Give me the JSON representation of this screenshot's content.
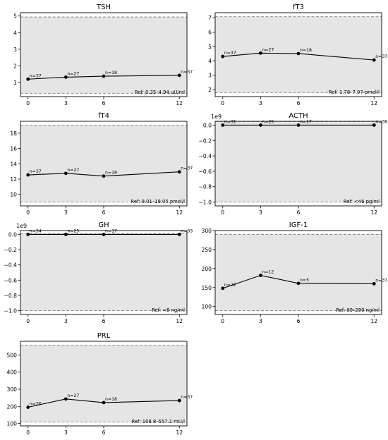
{
  "chart_data": [
    {
      "type": "line",
      "title": "TSH",
      "x": [
        0,
        3,
        6,
        12
      ],
      "xticks": [
        "0",
        "3",
        "6",
        "12"
      ],
      "series": [
        {
          "values": [
            1.2,
            1.32,
            1.38,
            1.43
          ]
        }
      ],
      "point_labels": [
        "n=37",
        "n=27",
        "n=18",
        "n=37"
      ],
      "ref_range": [
        0.35,
        4.94
      ],
      "ref_label": "Ref: 0.35–4.94 uU/ml",
      "ylim": [
        0.15,
        5.2
      ],
      "yticks": [
        1,
        2,
        3,
        4,
        5
      ],
      "yticklabels": [
        "1",
        "2",
        "3",
        "4",
        "5"
      ],
      "offset_text": "",
      "shading": "#e5e5e5"
    },
    {
      "type": "line",
      "title": "fT3",
      "x": [
        0,
        3,
        6,
        12
      ],
      "xticks": [
        "0",
        "3",
        "6",
        "12"
      ],
      "series": [
        {
          "values": [
            4.3,
            4.53,
            4.5,
            4.05
          ]
        }
      ],
      "point_labels": [
        "n=37",
        "n=27",
        "n=18",
        "n=37"
      ],
      "ref_range": [
        1.78,
        7.07
      ],
      "ref_label": "Ref: 1.78–7.07 pmol/l",
      "ylim": [
        1.5,
        7.35
      ],
      "yticks": [
        2,
        3,
        4,
        5,
        6,
        7
      ],
      "yticklabels": [
        "2",
        "3",
        "4",
        "5",
        "6",
        "7"
      ],
      "offset_text": "",
      "shading": "#e5e5e5"
    },
    {
      "type": "line",
      "title": "fT4",
      "x": [
        0,
        3,
        6,
        12
      ],
      "xticks": [
        "0",
        "3",
        "6",
        "12"
      ],
      "series": [
        {
          "values": [
            12.55,
            12.75,
            12.4,
            12.95
          ]
        }
      ],
      "point_labels": [
        "n=37",
        "n=27",
        "n=18",
        "n=37"
      ],
      "ref_range": [
        9.01,
        19.05
      ],
      "ref_label": "Ref: 9.01–19.05 pmol/l",
      "ylim": [
        8.5,
        19.55
      ],
      "yticks": [
        10,
        12,
        14,
        16,
        18
      ],
      "yticklabels": [
        "10",
        "12",
        "14",
        "16",
        "18"
      ],
      "offset_text": "",
      "shading": "#e5e5e5"
    },
    {
      "type": "line",
      "title": "ACTH",
      "x": [
        0,
        3,
        6,
        12
      ],
      "xticks": [
        "0",
        "3",
        "6",
        "12"
      ],
      "series": [
        {
          "values": [
            0,
            0,
            0,
            0
          ]
        }
      ],
      "point_labels": [
        "n=31",
        "n=25",
        "n=17",
        "n=36"
      ],
      "ref_range": [
        -1.0,
        0.046
      ],
      "ref_label": "Ref: <46 pg/ml",
      "ylim": [
        -1.05,
        0.05
      ],
      "yticks": [
        0.0,
        -0.2,
        -0.4,
        -0.6,
        -0.8,
        -1.0
      ],
      "yticklabels": [
        "0.0",
        "−0.2",
        "−0.4",
        "−0.6",
        "−0.8",
        "−1.0"
      ],
      "offset_text": "1e9",
      "shading": "#e5e5e5"
    },
    {
      "type": "line",
      "title": "GH",
      "x": [
        0,
        3,
        6,
        12
      ],
      "xticks": [
        "0",
        "3",
        "6",
        "12"
      ],
      "series": [
        {
          "values": [
            0,
            0,
            0,
            0
          ]
        }
      ],
      "point_labels": [
        "n=34",
        "n=25",
        "n=17",
        "n=33"
      ],
      "ref_range": [
        -1.0,
        0.008
      ],
      "ref_label": "Ref: <8 ng/ml",
      "ylim": [
        -1.05,
        0.05
      ],
      "yticks": [
        0.0,
        -0.2,
        -0.4,
        -0.6,
        -0.8,
        -1.0
      ],
      "yticklabels": [
        "0.0",
        "−0.2",
        "−0.4",
        "−0.6",
        "−0.8",
        "−1.0"
      ],
      "offset_text": "1e9",
      "shading": "#e5e5e5"
    },
    {
      "type": "line",
      "title": "IGF-1",
      "x": [
        0,
        3,
        6,
        12
      ],
      "xticks": [
        "0",
        "3",
        "6",
        "12"
      ],
      "series": [
        {
          "values": [
            148,
            182,
            161,
            160
          ]
        }
      ],
      "point_labels": [
        "n=22",
        "n=12",
        "n=5",
        "n=37"
      ],
      "ref_range": [
        89,
        290
      ],
      "ref_label": "Ref: 89–290 ng/ml",
      "ylim": [
        79,
        300
      ],
      "yticks": [
        100,
        150,
        200,
        250,
        300
      ],
      "yticklabels": [
        "100",
        "150",
        "200",
        "250",
        "300"
      ],
      "offset_text": "",
      "shading": "#e5e5e5"
    },
    {
      "type": "line",
      "title": "PRL",
      "x": [
        0,
        3,
        6,
        12
      ],
      "xticks": [
        "0",
        "3",
        "6",
        "12"
      ],
      "series": [
        {
          "values": [
            195,
            243,
            222,
            234
          ]
        }
      ],
      "point_labels": [
        "n=36",
        "n=27",
        "n=18",
        "n=37"
      ],
      "ref_range": [
        108.8,
        557.1
      ],
      "ref_label": "Ref: 108.8–557.1 mU/l",
      "ylim": [
        86,
        580
      ],
      "yticks": [
        100,
        200,
        300,
        400,
        500
      ],
      "yticklabels": [
        "100",
        "200",
        "300",
        "400",
        "500"
      ],
      "offset_text": "",
      "shading": "#e5e5e5"
    }
  ]
}
